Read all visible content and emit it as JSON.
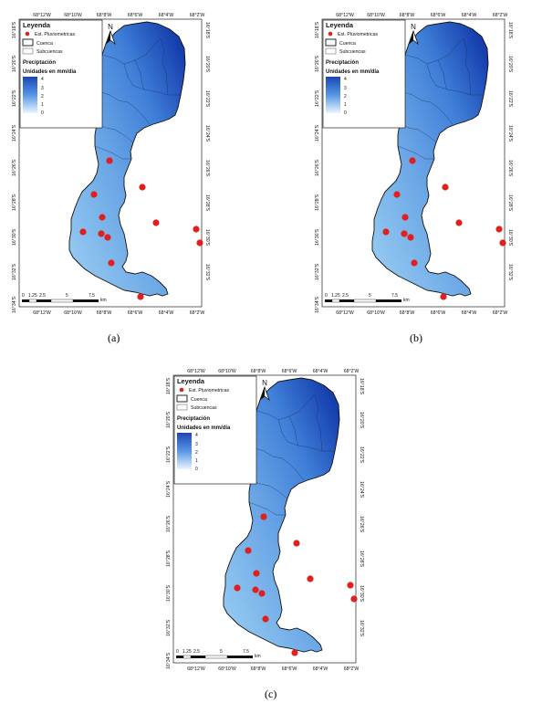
{
  "panels": [
    {
      "id": "a",
      "caption": "(a)",
      "legend_max": "4"
    },
    {
      "id": "b",
      "caption": "(b)",
      "legend_max": "4"
    },
    {
      "id": "c",
      "caption": "(c)",
      "legend_max": "4"
    }
  ],
  "map": {
    "top_ticks": [
      "68°12'W",
      "68°10'W",
      "68°8'W",
      "68°6'W",
      "68°4'W",
      "68°2'W"
    ],
    "bottom_ticks": [
      "68°12'W",
      "68°10'W",
      "68°8'W",
      "68°6'W",
      "68°4'W",
      "68°2'W"
    ],
    "left_ticks": [
      "16°18'S",
      "16°20'S",
      "16°22'S",
      "16°24'S",
      "16°26'S",
      "16°28'S",
      "16°30'S",
      "16°32'S",
      "16°34'S"
    ],
    "right_ticks": [
      "16°18'S",
      "16°20'S",
      "16°22'S",
      "16°24'S",
      "16°26'S",
      "16°28'S",
      "16°30'S",
      "16°32'S"
    ],
    "north_label": "N",
    "scale_labels": [
      "0",
      "1.25",
      "2.5",
      "5",
      "7.5"
    ],
    "scale_unit": "km",
    "stations_count_visible": 11
  },
  "legend": {
    "title": "Leyenda",
    "items": [
      "Est. Pluviometricas",
      "Cuenca",
      "Subcuencas"
    ],
    "precip_title": "Preciptación",
    "units": "Unidades en mm/día",
    "ramp_labels": [
      "4",
      "3",
      "2",
      "1",
      "0"
    ]
  },
  "colors": {
    "station": "#e0201e",
    "basin_dark": "#1d4fb8",
    "basin_light": "#8ec5ee",
    "basin_edge": "#111111"
  }
}
